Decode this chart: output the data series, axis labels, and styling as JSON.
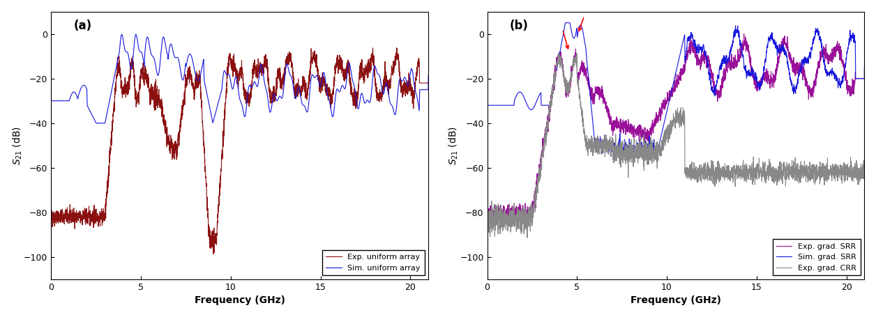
{
  "fig_width": 12.56,
  "fig_height": 4.55,
  "dpi": 100,
  "background_color": "#ffffff",
  "ylim": [
    -110,
    10
  ],
  "xlim": [
    0,
    21
  ],
  "yticks": [
    0,
    -20,
    -40,
    -60,
    -80,
    -100
  ],
  "xticks": [
    0,
    5,
    10,
    15,
    20
  ],
  "ylabel": "$S_{21}$ (dB)",
  "xlabel": "Frequency (GHz)",
  "label_a": "(a)",
  "label_b": "(b)",
  "color_exp_uniform": "#8B1010",
  "color_sim_uniform": "#1515DD",
  "color_exp_grad_srr": "#991199",
  "color_sim_grad_srr": "#1515DD",
  "color_exp_grad_crr": "#888888",
  "color_arrow": "#FF0000",
  "legend_a": [
    "Exp. uniform array",
    "Sim. uniform array"
  ],
  "legend_b": [
    "Exp. grad. SRR",
    "Sim. grad. SRR",
    "Exp. grad. CRR"
  ],
  "linewidth": 0.8
}
